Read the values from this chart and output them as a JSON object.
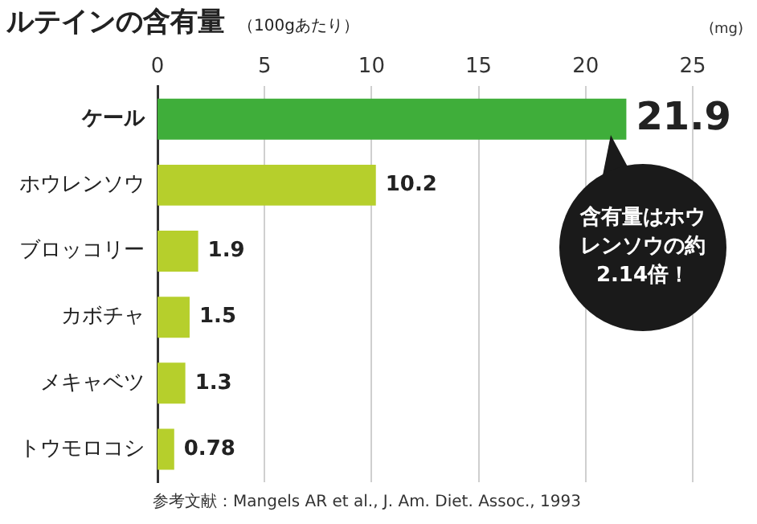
{
  "chart_data": {
    "type": "bar",
    "orientation": "horizontal",
    "title": "ルテインの含有量",
    "subtitle": "（100gあたり）",
    "xlabel": "(mg)",
    "categories": [
      "ケール",
      "ホウレンソウ",
      "ブロッコリー",
      "カボチャ",
      "メキャベツ",
      "トウモロコシ"
    ],
    "values": [
      21.9,
      10.2,
      1.9,
      1.5,
      1.3,
      0.78
    ],
    "colors": [
      "#3fae3a",
      "#b6cf2c",
      "#b6cf2c",
      "#b6cf2c",
      "#b6cf2c",
      "#b6cf2c"
    ],
    "data_labels": true,
    "xlim": [
      0,
      25
    ],
    "xticks": [
      0,
      5,
      10,
      15,
      20,
      25
    ],
    "grid": "x",
    "legend": false,
    "annotations": [
      "含有量はホウレンソウの約2.14倍！",
      "参考文献：Mangels AR et al., J. Am. Diet. Assoc., 1993"
    ]
  }
}
